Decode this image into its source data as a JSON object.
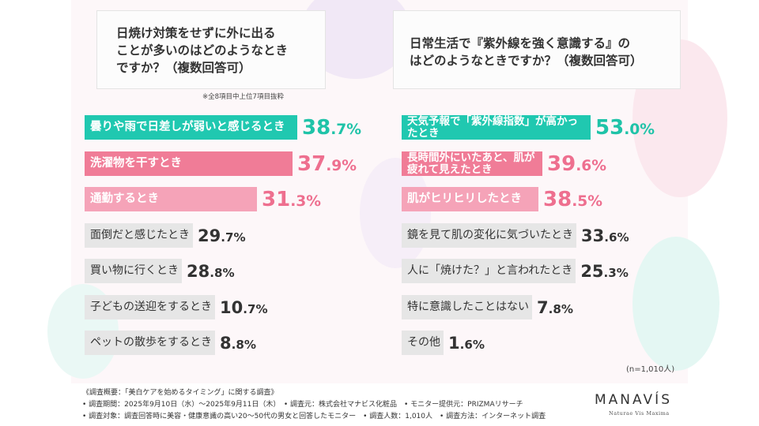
{
  "left_title": [
    "日焼け対策をせずに外に出る",
    "ことが多いのはどのようなとき",
    "ですか？（複数回答可）"
  ],
  "left_note": "※全8項目中上位7項目抜粋",
  "right_title": [
    "日常生活で『紫外線を強く意識する』の",
    "はどのようなときですか？（複数回答可）"
  ],
  "right_note": "(n=1,010人)",
  "colors": {
    "teal": "#20c8b0",
    "pink": "#f07c97",
    "light_pink": "#f5a3b8",
    "grey_bar": "#e6e6e6",
    "teal_text": "#1fc3a8",
    "pink_text": "#ee6f8f",
    "grey_text": "#333333"
  },
  "chart_data": [
    {
      "type": "bar",
      "orientation": "horizontal",
      "categories": [
        "曇りや雨で日差しが弱いと感じるとき",
        "洗濯物を干すとき",
        "通勤するとき",
        "面倒だと感じたとき",
        "買い物に行くとき",
        "子どもの送迎をするとき",
        "ペットの散歩をするとき"
      ],
      "values": [
        38.7,
        37.9,
        31.3,
        29.7,
        28.8,
        10.7,
        8.8
      ],
      "unit": "%",
      "title": "日焼け対策をせずに外に出ることが多いのはどのようなときですか？（複数回答可）"
    },
    {
      "type": "bar",
      "orientation": "horizontal",
      "categories": [
        "天気予報で「紫外線指数」が高かったとき",
        "長時間外にいたあと、肌が疲れて見えたとき",
        "肌がヒリヒリしたとき",
        "鏡を見て肌の変化に気づいたとき",
        "人に「焼けた？」と言われたとき",
        "特に意識したことはない",
        "その他"
      ],
      "values": [
        53.0,
        39.6,
        38.5,
        33.6,
        25.3,
        7.8,
        1.6
      ],
      "unit": "%",
      "title": "日常生活で『紫外線を強く意識する』のはどのようなときですか？（複数回答可）"
    }
  ],
  "footer": {
    "line1": "《調査概要：「美白ケアを始めるタイミング」に関する調査》",
    "line2": "• 調査期間：2025年9月10日（水）～2025年9月11日（木）　• 調査元：株式会社マナビス化粧品　• モニター提供元：PRIZMAリサーチ",
    "line3": "• 調査対象：調査回答時に美容・健康意識の高い20～50代の男女と回答したモニター　• 調査人数：1,010人　• 調査方法：インターネット調査"
  },
  "logo": {
    "name": "MANAVÍS",
    "tagline": "Naturae Vis Maxima"
  }
}
